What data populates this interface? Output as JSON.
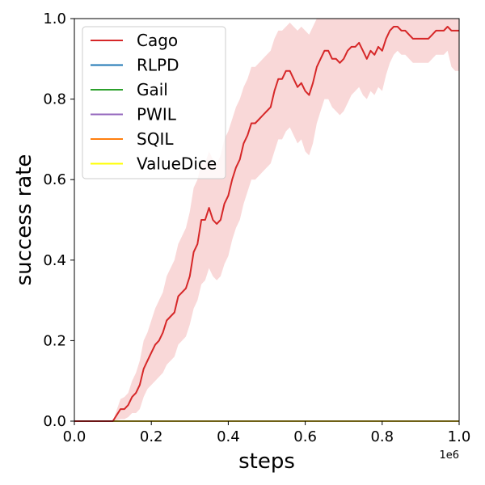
{
  "chart_data": {
    "type": "line",
    "title": "",
    "xlabel": "steps",
    "ylabel": "success rate",
    "x_offset_label": "1e6",
    "xlim": [
      0.0,
      1.0
    ],
    "ylim": [
      0.0,
      1.0
    ],
    "xticks": [
      0.0,
      0.2,
      0.4,
      0.6,
      0.8,
      1.0
    ],
    "xtick_labels": [
      "0.0",
      "0.2",
      "0.4",
      "0.6",
      "0.8",
      "1.0"
    ],
    "yticks": [
      0.0,
      0.2,
      0.4,
      0.6,
      0.8,
      1.0
    ],
    "ytick_labels": [
      "0.0",
      "0.2",
      "0.4",
      "0.6",
      "0.8",
      "1.0"
    ],
    "grid": false,
    "legend_position": "top-left",
    "series": [
      {
        "name": "Cago",
        "color": "#d62728",
        "band_color": "#f8d4d4",
        "x": [
          0.0,
          0.1,
          0.12,
          0.13,
          0.14,
          0.15,
          0.16,
          0.17,
          0.18,
          0.19,
          0.2,
          0.21,
          0.22,
          0.23,
          0.24,
          0.25,
          0.26,
          0.27,
          0.28,
          0.29,
          0.3,
          0.31,
          0.32,
          0.33,
          0.34,
          0.35,
          0.36,
          0.37,
          0.38,
          0.39,
          0.4,
          0.41,
          0.42,
          0.43,
          0.44,
          0.45,
          0.46,
          0.47,
          0.48,
          0.49,
          0.5,
          0.51,
          0.52,
          0.53,
          0.54,
          0.55,
          0.56,
          0.57,
          0.58,
          0.59,
          0.6,
          0.61,
          0.62,
          0.63,
          0.64,
          0.65,
          0.66,
          0.67,
          0.68,
          0.69,
          0.7,
          0.71,
          0.72,
          0.73,
          0.74,
          0.75,
          0.76,
          0.77,
          0.78,
          0.79,
          0.8,
          0.81,
          0.82,
          0.83,
          0.84,
          0.85,
          0.86,
          0.87,
          0.88,
          0.89,
          0.9,
          0.91,
          0.92,
          0.93,
          0.94,
          0.95,
          0.96,
          0.97,
          0.98,
          0.99,
          1.0
        ],
        "y": [
          0.0,
          0.0,
          0.03,
          0.03,
          0.04,
          0.06,
          0.07,
          0.09,
          0.13,
          0.15,
          0.17,
          0.19,
          0.2,
          0.22,
          0.25,
          0.26,
          0.27,
          0.31,
          0.32,
          0.33,
          0.36,
          0.42,
          0.44,
          0.5,
          0.5,
          0.53,
          0.5,
          0.49,
          0.5,
          0.54,
          0.56,
          0.6,
          0.63,
          0.65,
          0.69,
          0.71,
          0.74,
          0.74,
          0.75,
          0.76,
          0.77,
          0.78,
          0.82,
          0.85,
          0.85,
          0.87,
          0.87,
          0.85,
          0.83,
          0.84,
          0.82,
          0.81,
          0.84,
          0.88,
          0.9,
          0.92,
          0.92,
          0.9,
          0.9,
          0.89,
          0.9,
          0.92,
          0.93,
          0.93,
          0.94,
          0.92,
          0.9,
          0.92,
          0.91,
          0.93,
          0.92,
          0.95,
          0.97,
          0.98,
          0.98,
          0.97,
          0.97,
          0.96,
          0.95,
          0.95,
          0.95,
          0.95,
          0.95,
          0.96,
          0.97,
          0.97,
          0.97,
          0.98,
          0.97,
          0.97,
          0.97
        ],
        "upper": [
          0.0,
          0.0,
          0.055,
          0.06,
          0.07,
          0.1,
          0.12,
          0.15,
          0.2,
          0.22,
          0.25,
          0.28,
          0.3,
          0.32,
          0.36,
          0.38,
          0.4,
          0.44,
          0.46,
          0.48,
          0.52,
          0.58,
          0.6,
          0.64,
          0.64,
          0.67,
          0.65,
          0.64,
          0.66,
          0.7,
          0.72,
          0.75,
          0.78,
          0.8,
          0.83,
          0.85,
          0.88,
          0.88,
          0.89,
          0.9,
          0.91,
          0.92,
          0.95,
          0.97,
          0.97,
          0.98,
          0.99,
          0.98,
          0.97,
          0.98,
          0.97,
          0.96,
          0.98,
          1.0,
          1.0,
          1.0,
          1.0,
          1.0,
          1.0,
          1.0,
          1.0,
          1.0,
          1.0,
          1.0,
          1.0,
          1.0,
          1.0,
          1.0,
          1.0,
          1.0,
          1.0,
          1.0,
          1.0,
          1.0,
          1.0,
          1.0,
          1.0,
          1.0,
          1.0,
          1.0,
          1.0,
          1.0,
          1.0,
          1.0,
          1.0,
          1.0,
          1.0,
          1.0,
          1.0,
          1.0,
          1.0
        ],
        "lower": [
          0.0,
          0.0,
          0.005,
          0.005,
          0.01,
          0.02,
          0.02,
          0.03,
          0.06,
          0.08,
          0.09,
          0.1,
          0.11,
          0.12,
          0.14,
          0.15,
          0.16,
          0.19,
          0.2,
          0.21,
          0.24,
          0.28,
          0.3,
          0.34,
          0.35,
          0.38,
          0.36,
          0.35,
          0.36,
          0.39,
          0.41,
          0.45,
          0.48,
          0.5,
          0.54,
          0.57,
          0.6,
          0.6,
          0.61,
          0.62,
          0.63,
          0.64,
          0.67,
          0.7,
          0.7,
          0.72,
          0.73,
          0.71,
          0.69,
          0.7,
          0.67,
          0.66,
          0.69,
          0.74,
          0.77,
          0.8,
          0.8,
          0.78,
          0.77,
          0.76,
          0.77,
          0.79,
          0.81,
          0.82,
          0.83,
          0.81,
          0.8,
          0.82,
          0.81,
          0.83,
          0.82,
          0.86,
          0.89,
          0.91,
          0.92,
          0.91,
          0.91,
          0.9,
          0.89,
          0.89,
          0.89,
          0.89,
          0.89,
          0.9,
          0.91,
          0.91,
          0.91,
          0.92,
          0.88,
          0.87,
          0.87
        ]
      },
      {
        "name": "RLPD",
        "color": "#1f77b4",
        "x": [
          0.0,
          1.0
        ],
        "y": [
          0.0,
          0.0
        ]
      },
      {
        "name": "Gail",
        "color": "#2ca02c",
        "x": [
          0.0,
          1.0
        ],
        "y": [
          0.0,
          0.0
        ]
      },
      {
        "name": "PWIL",
        "color": "#9467bd",
        "x": [
          0.0,
          1.0
        ],
        "y": [
          0.0,
          0.0
        ]
      },
      {
        "name": "SQIL",
        "color": "#ff7f0e",
        "x": [
          0.0,
          1.0
        ],
        "y": [
          0.0,
          0.0
        ]
      },
      {
        "name": "ValueDice",
        "color": "#ffff00",
        "x": [
          0.0,
          1.0
        ],
        "y": [
          0.0,
          0.0
        ]
      }
    ]
  }
}
